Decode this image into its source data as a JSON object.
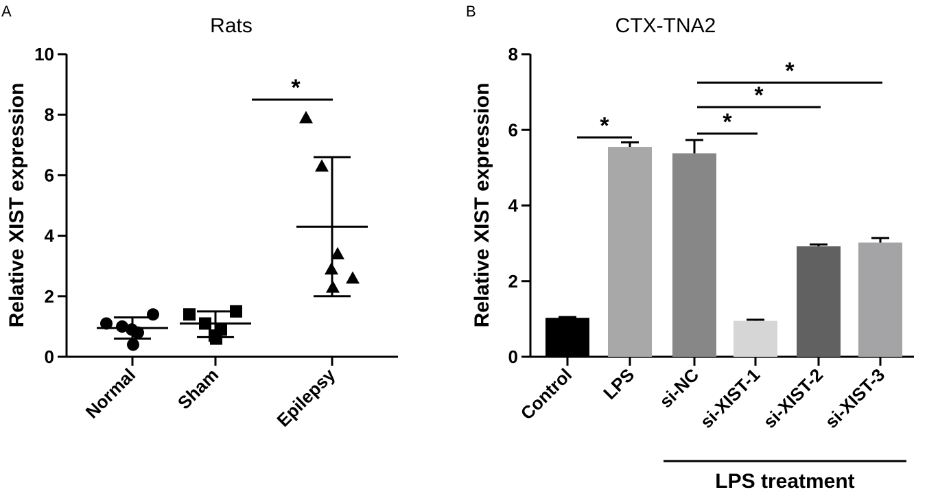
{
  "chart_data": [
    {
      "panel": "A",
      "type": "scatter",
      "title": "Rats",
      "ylabel": "Relative XIST expression",
      "xlabel": "",
      "ylim": [
        0,
        10
      ],
      "yticks": [
        0,
        2,
        4,
        6,
        8,
        10
      ],
      "categories": [
        "Normal",
        "Sham",
        "Epilepsy"
      ],
      "groups": [
        {
          "name": "Normal",
          "marker": "circle",
          "points": [
            1.1,
            1.0,
            0.8,
            0.9,
            1.4,
            0.4
          ],
          "mean": 0.95,
          "sd_low": 0.6,
          "sd_high": 1.3
        },
        {
          "name": "Sham",
          "marker": "square",
          "points": [
            1.4,
            1.1,
            0.9,
            0.7,
            1.5,
            0.6
          ],
          "mean": 1.1,
          "sd_low": 0.65,
          "sd_high": 1.5
        },
        {
          "name": "Epilepsy",
          "marker": "triangle",
          "points": [
            7.9,
            6.3,
            3.4,
            2.9,
            2.6,
            2.3
          ],
          "mean": 4.3,
          "sd_low": 2.0,
          "sd_high": 6.6
        }
      ],
      "significance": [
        {
          "from": "Sham",
          "to": "Epilepsy",
          "y": 8.5,
          "label": "*"
        }
      ]
    },
    {
      "panel": "B",
      "type": "bar",
      "title": "CTX-TNA2",
      "ylabel": "Relative XIST expression",
      "xlabel": "",
      "ylim": [
        0,
        8
      ],
      "yticks": [
        0,
        2,
        4,
        6,
        8
      ],
      "categories": [
        "Control",
        "LPS",
        "si-NC",
        "si-XIST-1",
        "si-XIST-2",
        "si-XIST-3"
      ],
      "values": [
        1.03,
        5.55,
        5.38,
        0.95,
        2.92,
        3.02
      ],
      "errors": [
        0.02,
        0.12,
        0.35,
        0.03,
        0.05,
        0.12
      ],
      "colors": [
        "#000000",
        "#a8a8a8",
        "#878787",
        "#d6d6d6",
        "#616161",
        "#a4a4a6"
      ],
      "significance": [
        {
          "from": "Control",
          "to": "LPS",
          "y": 5.8,
          "label": "*"
        },
        {
          "from": "si-NC",
          "to": "si-XIST-1",
          "y": 5.9,
          "label": "*"
        },
        {
          "from": "si-NC",
          "to": "si-XIST-2",
          "y": 6.6,
          "label": "*"
        },
        {
          "from": "si-NC",
          "to": "si-XIST-3",
          "y": 7.25,
          "label": "*"
        }
      ],
      "group_label": {
        "text": "LPS treatment",
        "from": "si-NC",
        "to": "si-XIST-3"
      }
    }
  ]
}
